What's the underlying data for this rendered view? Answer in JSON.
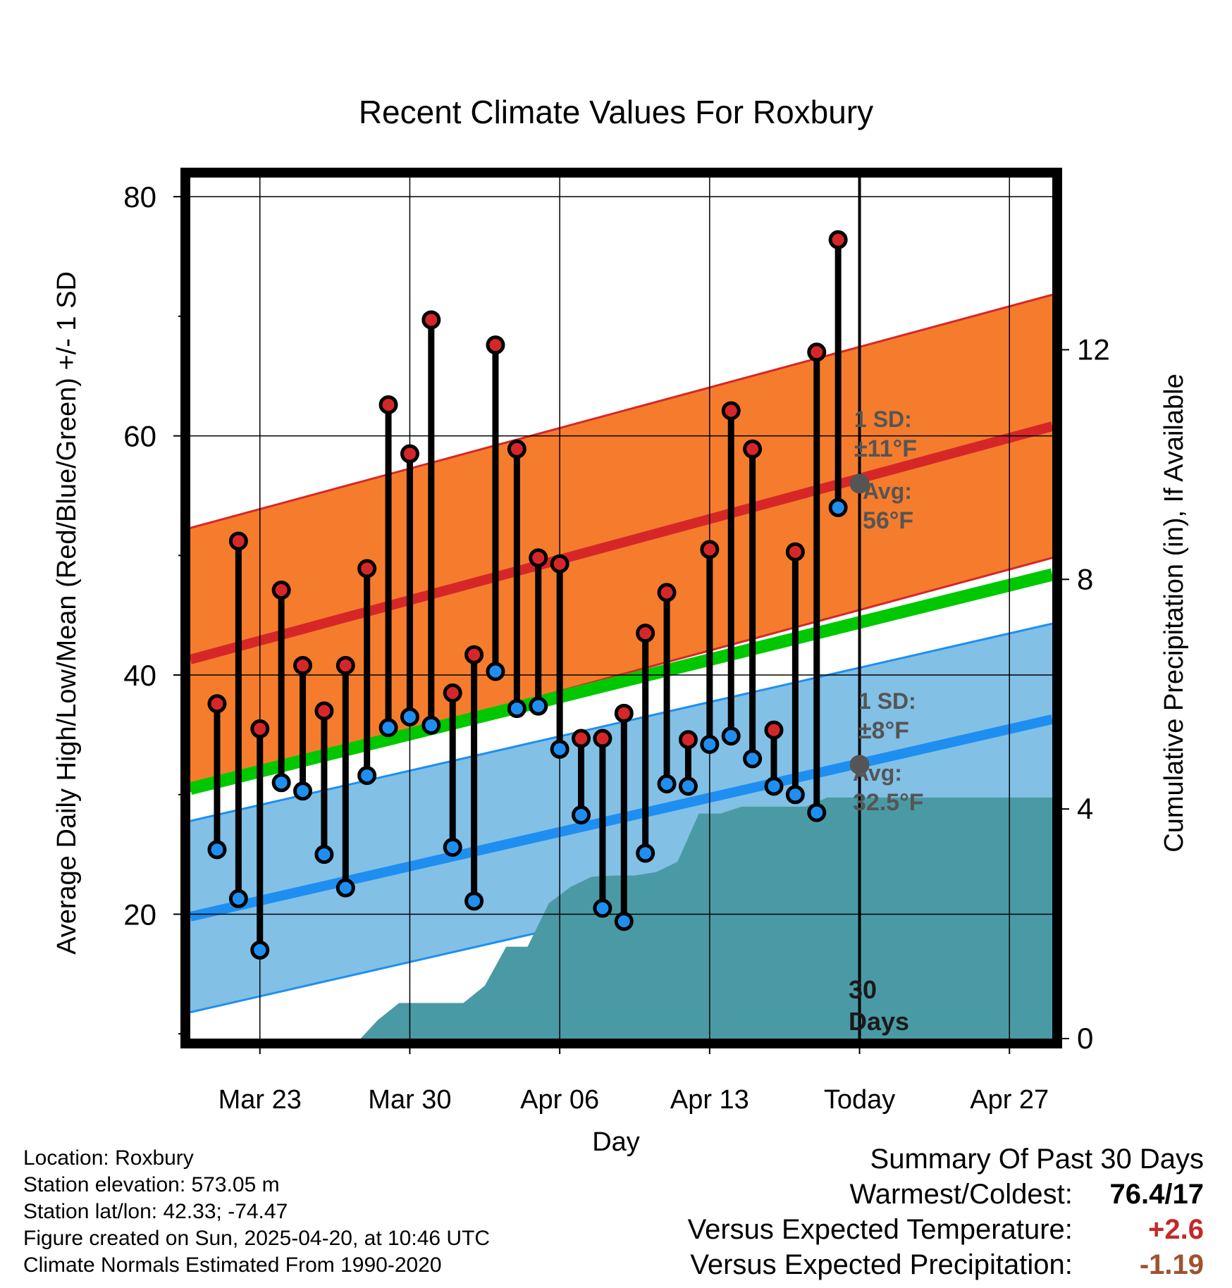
{
  "chart_data": {
    "type": "line",
    "title": "Recent Climate Values For Roxbury",
    "xlabel": "Day",
    "ylabel": "Average Daily High/Low/Mean (Red/Blue/Green) +/- 1 SD",
    "ylabel_right": "Cumulative Precipitation (in), If Available",
    "x_ticks": [
      "Mar 23",
      "Mar 30",
      "Apr 06",
      "Apr 13",
      "Today",
      "Apr 27"
    ],
    "x_tick_days": [
      3,
      10,
      17,
      24,
      31,
      38
    ],
    "xlim": [
      -0.25,
      40.0
    ],
    "ylim": [
      9.6,
      81.6
    ],
    "y_ticks": [
      20,
      40,
      60,
      80
    ],
    "y_minor_ticks": [
      10,
      30,
      50,
      70
    ],
    "y2lim": [
      0,
      15
    ],
    "y2_ticks": [
      0,
      4,
      8,
      12
    ],
    "grid": true,
    "days": [
      1,
      2,
      3,
      4,
      5,
      6,
      7,
      8,
      9,
      10,
      11,
      12,
      13,
      14,
      15,
      16,
      17,
      18,
      19,
      20,
      21,
      22,
      23,
      24,
      25,
      26,
      27,
      28,
      29,
      30
    ],
    "daily_high": [
      37.6,
      51.2,
      35.5,
      47.1,
      40.8,
      37.0,
      40.8,
      48.9,
      62.6,
      58.5,
      69.7,
      38.5,
      41.7,
      67.6,
      58.9,
      49.8,
      49.3,
      34.7,
      34.7,
      36.8,
      43.5,
      46.9,
      34.6,
      50.5,
      62.1,
      58.9,
      35.4,
      50.3,
      67.0,
      76.4
    ],
    "daily_low": [
      25.4,
      21.3,
      17.0,
      31.0,
      30.3,
      25.0,
      22.2,
      31.6,
      35.6,
      36.5,
      35.8,
      25.6,
      21.1,
      40.3,
      37.2,
      37.4,
      33.8,
      28.3,
      20.5,
      19.4,
      25.1,
      30.9,
      30.7,
      34.2,
      34.9,
      33.0,
      30.7,
      30.0,
      28.5,
      54.0
    ],
    "normal_high": {
      "x": [
        -0.25,
        40.0
      ],
      "mean": [
        41.3,
        60.8
      ],
      "sd": 11
    },
    "normal_low": {
      "x": [
        -0.25,
        40.0
      ],
      "mean": [
        19.8,
        36.3
      ],
      "sd": 8
    },
    "normal_mean": {
      "x": [
        -0.25,
        40.0
      ],
      "values": [
        30.5,
        48.4
      ]
    },
    "cumulative_precip": {
      "x": [
        -0.25,
        7.7,
        8.5,
        9.5,
        10.5,
        11.5,
        12.5,
        13.5,
        14.5,
        15.5,
        16.5,
        17.5,
        18.5,
        19.5,
        20.5,
        21.5,
        22.5,
        23.5,
        24.5,
        25.5,
        26.5,
        27.5,
        28.5,
        29.5,
        30.5,
        40.0
      ],
      "y": [
        0,
        0,
        0.32,
        0.62,
        0.62,
        0.62,
        0.62,
        0.92,
        1.6,
        1.6,
        2.36,
        2.64,
        2.82,
        2.84,
        2.84,
        2.9,
        3.08,
        3.92,
        3.92,
        4.04,
        4.04,
        4.04,
        4.04,
        4.2,
        4.2,
        4.2
      ]
    },
    "annotations": {
      "high_sd_label": "1 SD:",
      "high_sd_value": "±11°F",
      "high_avg_label": "Avg:",
      "high_avg_value": "56°F",
      "low_sd_label": "1 SD:",
      "low_sd_value": "±8°F",
      "low_avg_label": "Avg:",
      "low_avg_value": "32.5°F",
      "today_high_avg": 56,
      "today_low_avg": 32.5,
      "today_day": 31,
      "window_label_line1": "30",
      "window_label_line2": "Days"
    },
    "colors": {
      "high_band": "#f57c2c",
      "high_band_edge": "#d62728",
      "high_mean": "#d62728",
      "low_band": "#82c0e6",
      "low_band_edge": "#1e8ff0",
      "low_mean": "#1e8ff0",
      "normal_mean": "#00c800",
      "precip": "#4a9aa5",
      "high_dot": "#d62728",
      "low_dot": "#1e8ff0",
      "today_marker": "#555555"
    }
  },
  "info": {
    "location": "Location: Roxbury",
    "elevation": "Station elevation: 573.05 m",
    "latlon": "Station lat/lon: 42.33; -74.47",
    "created": "Figure created on Sun, 2025-04-20, at 10:46 UTC",
    "normals": "Climate Normals Estimated From 1990-2020"
  },
  "summary": {
    "heading": "Summary Of Past 30 Days",
    "warmest_coldest_label": "Warmest/Coldest:",
    "warmest_coldest_value": "76.4/17",
    "temp_label": "Versus Expected Temperature:",
    "temp_value": "+2.6",
    "temp_color": "#c62828",
    "precip_label": "Versus Expected Precipitation:",
    "precip_value": "-1.19",
    "precip_color": "#a0522d"
  }
}
